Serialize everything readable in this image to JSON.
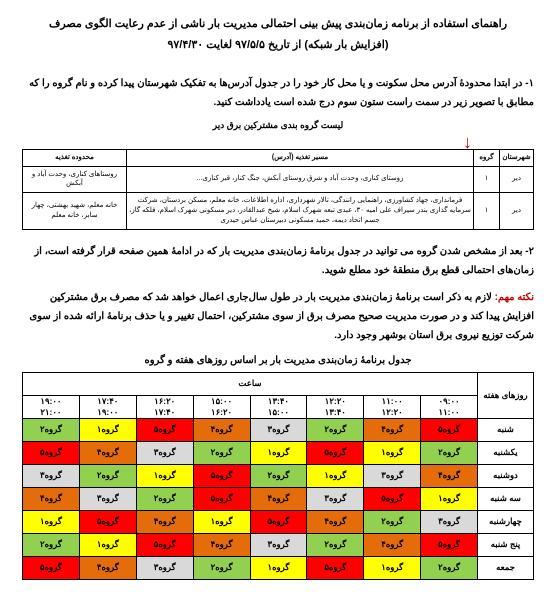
{
  "title": {
    "line1": "راهنمای استفاده از برنامه زمان‌بندی پیش بینی احتمالی مدیریت بار ناشی از عدم رعایت الگوی مصرف",
    "line2": "(افزایش بار شبکه) از تاریخ ۹۷/۵/۵ لغایت ۹۷/۴/۳۰"
  },
  "para1": "۱- در ابتدا محدودۀ آدرس محل سکونت و یا محل کار خود را در جدول آدرس‌ها به تفکیک شهرستان پیدا کرده و نام گروه را که مطابق با تصویر زیر در سمت راست ستون سوم درج شده است یادداشت کنید.",
  "listCaption": "لیست گروه بندی مشترکین برق دیر",
  "glist": {
    "headers": {
      "shahr": "شهرستان",
      "group": "گروه",
      "masir": "مسیر تغذیه (آدرس)",
      "mahd": "محدوده تغذیه"
    },
    "rows": [
      {
        "shahr": "دیر",
        "group": "۱",
        "masir": "روستای کناری، وحدت آباد و شرق روستای آبکش، جنگ کنار، قبر کناری...",
        "mahd": "روستاهای کناری، وحدت آباد و آبکش"
      },
      {
        "shahr": "دیر",
        "group": "۱",
        "masir": "فرمانداری، جهاد کشاورزی، راهنمایی رانندگی، تالار شهرداری، اداره اطلاعات، خانه معلم، مسکن بردستان، شرکت سرمایه گذاری بندر سیراف علی امیه ۳۰، عبدی تبعه شهرک اسلام، شیخ عبدالقادر، دیر مسکونی شهرک اسلام، فلکه گاز، جسم اتحاد دیمه، حمید مسکونی دبیرستان عباس حیدری",
        "mahd": "خانه معلم، شهید بهشتی، چهار سابر، خانه معلم"
      }
    ]
  },
  "para2": "۲- بعد از مشخص شدن گروه می توانید در جدول برنامۀ زمان‌بندی مدیریت بار که در ادامۀ همین صفحه قرار گرفته است، از زمان‌های احتمالی قطع برق منطقۀ خود مطلع شوید.",
  "noteLabel": "نکته مهم:",
  "noteBody": " لازم به ذکر است برنامۀ زمان‌بندی مدیریت بار در طول سال‌جاری اعمال خواهد شد که مصرف برق مشترکین افزایش پیدا کند و در صورت مدیریت صحیح مصرف برق از سوی مشترکین، احتمال تغییر و یا حذف برنامۀ ارائه شده از سوی شرکت توزیع نیروی برق استان بوشهر وجود دارد.",
  "schedCaption": "جدول برنامۀ زمان‌بندی مدیریت بار بر اساس روزهای هفته و گروه",
  "schedule": {
    "daysHeader": "روزهای هفته",
    "saat": "ساعت",
    "hours": [
      {
        "top": "۰۹:۰۰",
        "bot": "۱۱:۰۰"
      },
      {
        "top": "۱۱:۰۰",
        "bot": "۱۲:۲۰"
      },
      {
        "top": "۱۲:۲۰",
        "bot": "۱۳:۴۰"
      },
      {
        "top": "۱۳:۴۰",
        "bot": "۱۵:۰۰"
      },
      {
        "top": "۱۵:۰۰",
        "bot": "۱۶:۲۰"
      },
      {
        "top": "۱۶:۲۰",
        "bot": "۱۷:۴۰"
      },
      {
        "top": "۱۷:۴۰",
        "bot": "۱۹:۰۰"
      },
      {
        "top": "۱۹:۰۰",
        "bot": "۲۱:۰۰"
      }
    ],
    "days": [
      "شنبه",
      "یکشنبه",
      "دوشنبه",
      "سه شنبه",
      "چهارشنبه",
      "پنج شنبه",
      "جمعه"
    ],
    "colors": {
      "g1": "#ffff00",
      "g2": "#92d050",
      "g3": "#d9d9d9",
      "g4": "#e46c0a",
      "g5": "#ff0000"
    },
    "cells": [
      [
        {
          "t": "گروه۵",
          "c": "g5"
        },
        {
          "t": "گروه۴",
          "c": "g4"
        },
        {
          "t": "گروه۲",
          "c": "g2"
        },
        {
          "t": "گروه۳",
          "c": "g3"
        },
        {
          "t": "گروه۴",
          "c": "g4"
        },
        {
          "t": "گروه۵",
          "c": "g5"
        },
        {
          "t": "گروه۱",
          "c": "g1"
        },
        {
          "t": "گروه۲",
          "c": "g2"
        }
      ],
      [
        {
          "t": "گروه۲",
          "c": "g2"
        },
        {
          "t": "گروه۱",
          "c": "g1"
        },
        {
          "t": "گروه۵",
          "c": "g5"
        },
        {
          "t": "گروه۱",
          "c": "g1"
        },
        {
          "t": "گروه۲",
          "c": "g2"
        },
        {
          "t": "گروه۳",
          "c": "g3"
        },
        {
          "t": "گروه۴",
          "c": "g4"
        },
        {
          "t": "گروه۵",
          "c": "g5"
        }
      ],
      [
        {
          "t": "گروه۴",
          "c": "g4"
        },
        {
          "t": "گروه۳",
          "c": "g3"
        },
        {
          "t": "گروه۱",
          "c": "g1"
        },
        {
          "t": "گروه۲",
          "c": "g2"
        },
        {
          "t": "گروه۵",
          "c": "g5"
        },
        {
          "t": "گروه۱",
          "c": "g1"
        },
        {
          "t": "گروه۲",
          "c": "g2"
        },
        {
          "t": "گروه۳",
          "c": "g3"
        }
      ],
      [
        {
          "t": "گروه۱",
          "c": "g1"
        },
        {
          "t": "گروه۵",
          "c": "g5"
        },
        {
          "t": "گروه۳",
          "c": "g3"
        },
        {
          "t": "گروه۴",
          "c": "g4"
        },
        {
          "t": "گروه۵",
          "c": "g5"
        },
        {
          "t": "گروه۲",
          "c": "g2"
        },
        {
          "t": "گروه۳",
          "c": "g3"
        },
        {
          "t": "گروه۴",
          "c": "g4"
        }
      ],
      [
        {
          "t": "گروه۳",
          "c": "g3"
        },
        {
          "t": "گروه۲",
          "c": "g2"
        },
        {
          "t": "گروه۴",
          "c": "g4"
        },
        {
          "t": "گروه۵",
          "c": "g5"
        },
        {
          "t": "گروه۱",
          "c": "g1"
        },
        {
          "t": "گروه۴",
          "c": "g4"
        },
        {
          "t": "گروه۵",
          "c": "g5"
        },
        {
          "t": "گروه۱",
          "c": "g1"
        }
      ],
      [
        {
          "t": "گروه۵",
          "c": "g5"
        },
        {
          "t": "گروه۴",
          "c": "g4"
        },
        {
          "t": "گروه۲",
          "c": "g2"
        },
        {
          "t": "گروه۳",
          "c": "g3"
        },
        {
          "t": "گروه۴",
          "c": "g4"
        },
        {
          "t": "گروه۵",
          "c": "g5"
        },
        {
          "t": "گروه۱",
          "c": "g1"
        },
        {
          "t": "گروه۲",
          "c": "g2"
        }
      ],
      [
        {
          "t": "گروه۲",
          "c": "g2"
        },
        {
          "t": "گروه۱",
          "c": "g1"
        },
        {
          "t": "گروه۵",
          "c": "g5"
        },
        {
          "t": "گروه۱",
          "c": "g1"
        },
        {
          "t": "گروه۲",
          "c": "g2"
        },
        {
          "t": "گروه۳",
          "c": "g3"
        },
        {
          "t": "گروه۴",
          "c": "g4"
        },
        {
          "t": "گروه۵",
          "c": "g5"
        }
      ]
    ]
  }
}
